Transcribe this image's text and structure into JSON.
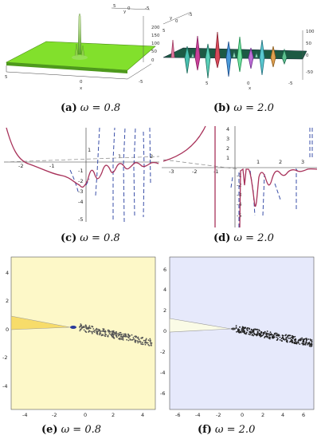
{
  "figure": {
    "panels": [
      {
        "id": "a",
        "letter": "(a)",
        "caption": "ω = 0.8"
      },
      {
        "id": "b",
        "letter": "(b)",
        "caption": "ω = 2.0"
      },
      {
        "id": "c",
        "letter": "(c)",
        "caption": "ω = 0.8"
      },
      {
        "id": "d",
        "letter": "(d)",
        "caption": "ω = 2.0"
      },
      {
        "id": "e",
        "letter": "(e)",
        "caption": "ω = 0.8"
      },
      {
        "id": "f",
        "letter": "(f)",
        "caption": "ω = 2.0"
      }
    ],
    "plot_a": {
      "z_ticks": [
        "200",
        "150",
        "100",
        "50",
        "0"
      ],
      "x_ticks": [
        "5",
        "0",
        "-5"
      ],
      "y_ticks": [
        "5",
        "0",
        "-5"
      ],
      "x_label": "x",
      "y_label": "y",
      "surface_color": "#7fe02a"
    },
    "plot_b": {
      "z_ticks": [
        "100",
        "50",
        "0",
        "-50"
      ],
      "x_ticks": [
        "5",
        "0",
        "-5"
      ],
      "y_ticks": [
        "5",
        "0",
        "-5"
      ],
      "x_label": "x",
      "y_label": "y",
      "surface_color": "#1f8a6a"
    },
    "plot_c": {
      "y_ticks": [
        "1",
        "-1",
        "-2",
        "-3",
        "-4",
        "-5"
      ],
      "x_ticks": [
        "-2",
        "-1",
        "1",
        "2"
      ],
      "curve_color": "#a8325a",
      "dash_color": "#3a4fa8"
    },
    "plot_d": {
      "y_ticks": [
        "4",
        "3",
        "2",
        "1",
        "-1",
        "-2",
        "-3",
        "-4",
        "-5"
      ],
      "x_ticks": [
        "-3",
        "-2",
        "-1",
        "1",
        "2",
        "3"
      ],
      "curve_color": "#a8325a",
      "dash_color": "#3a4fa8"
    },
    "plot_e": {
      "background": "#fdf8c8",
      "y_ticks": [
        "4",
        "2",
        "0",
        "-2",
        "-4"
      ],
      "x_ticks": [
        "-4",
        "-2",
        "0",
        "2",
        "4"
      ]
    },
    "plot_f": {
      "background": "#e6e9fb",
      "y_ticks": [
        "6",
        "4",
        "2",
        "0",
        "-2",
        "-4",
        "-6"
      ],
      "x_ticks": [
        "-6",
        "-4",
        "-2",
        "0",
        "2",
        "4",
        "6"
      ]
    }
  }
}
